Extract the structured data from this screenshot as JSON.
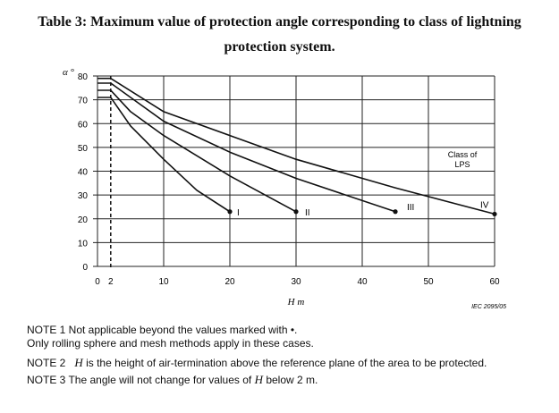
{
  "title": {
    "line1": "Table 3: Maximum value of protection angle corresponding to class of lightning",
    "line2": "protection system."
  },
  "chart_data": {
    "type": "line",
    "ylabel": "α °",
    "xlabel": "H m",
    "xlim": [
      0,
      60
    ],
    "ylim": [
      0,
      80
    ],
    "xticks": [
      0,
      2,
      10,
      20,
      30,
      40,
      50,
      60
    ],
    "xtick_labels": [
      "0",
      "2",
      "10",
      "20",
      "30",
      "40",
      "50",
      "60"
    ],
    "yticks": [
      0,
      10,
      20,
      30,
      40,
      50,
      60,
      70,
      80
    ],
    "ytick_labels": [
      "0",
      "10",
      "20",
      "30",
      "40",
      "50",
      "60",
      "70",
      "80"
    ],
    "vertical_marker_x": 2,
    "legend_title": [
      "Class of",
      "LPS"
    ],
    "series": [
      {
        "name": "I",
        "x": [
          0,
          2,
          5,
          10,
          15,
          20
        ],
        "y": [
          71,
          71,
          59,
          45,
          32,
          23
        ]
      },
      {
        "name": "II",
        "x": [
          0,
          2,
          5,
          10,
          20,
          30
        ],
        "y": [
          74,
          74,
          65,
          55,
          38,
          23
        ]
      },
      {
        "name": "III",
        "x": [
          0,
          2,
          10,
          20,
          30,
          45
        ],
        "y": [
          77,
          77,
          61,
          48,
          37,
          23
        ]
      },
      {
        "name": "IV",
        "x": [
          0,
          2,
          10,
          20,
          30,
          45,
          60
        ],
        "y": [
          79,
          79,
          65,
          55,
          45,
          33,
          22
        ]
      }
    ],
    "credit": "IEC 2095/05"
  },
  "notes": {
    "n1_a": "NOTE 1   Not applicable beyond the values marked with •.",
    "n1_b": "Only rolling sphere and mesh methods apply in these cases.",
    "n2_label": "NOTE 2",
    "n2_var": "H",
    "n2_text": " is the height of air-termination above the reference plane of the area to be protected.",
    "n3_a": "NOTE 3   The angle will not change for values of ",
    "n3_var": "H",
    "n3_b": " below 2 m."
  }
}
